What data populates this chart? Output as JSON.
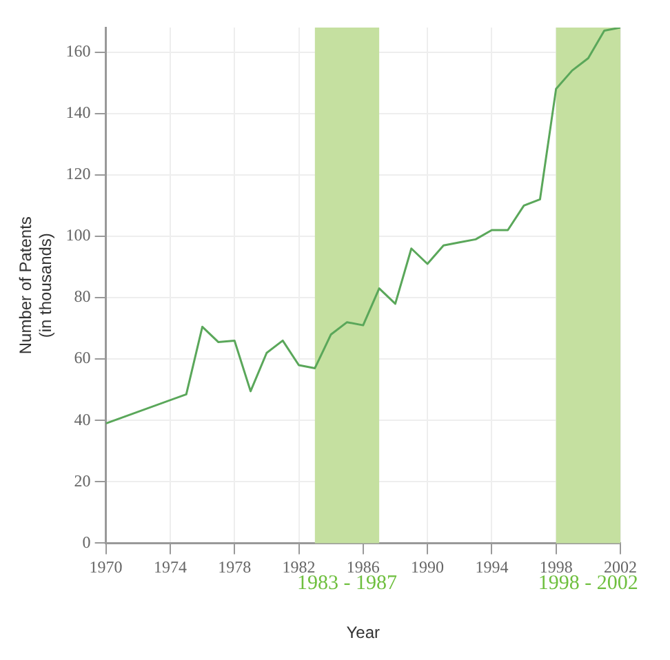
{
  "chart_data": {
    "type": "line",
    "xlabel": "Year",
    "ylabel": "Number of Patents\n(in thousands)",
    "x": [
      1970,
      1975,
      1976,
      1977,
      1978,
      1979,
      1980,
      1981,
      1982,
      1983,
      1984,
      1985,
      1986,
      1987,
      1988,
      1989,
      1990,
      1991,
      1992,
      1993,
      1994,
      1995,
      1996,
      1997,
      1998,
      1999,
      2000,
      2001,
      2002
    ],
    "series": [
      {
        "color": "#5aa75a",
        "values": [
          39,
          48.5,
          70.5,
          65.5,
          66,
          49.5,
          62,
          66,
          58,
          57,
          68,
          72,
          71,
          83,
          78,
          96,
          91,
          97,
          98,
          99,
          102,
          102,
          110,
          112,
          148,
          154,
          158,
          167,
          168
        ]
      }
    ],
    "xlim": [
      1970,
      2002
    ],
    "xticks": [
      1970,
      1974,
      1978,
      1982,
      1986,
      1990,
      1994,
      1998,
      2002
    ],
    "ylim": [
      0,
      168
    ],
    "yticks": [
      0,
      20,
      40,
      60,
      80,
      100,
      120,
      140,
      160
    ],
    "grid": true,
    "legend": false,
    "marker": "none",
    "line_style": "solid",
    "bands": [
      {
        "axis": "x",
        "from": 1983,
        "to": 1987,
        "label": "1983 - 1987",
        "color": "#c5e0a0"
      },
      {
        "axis": "x",
        "from": 1998,
        "to": 2002,
        "label": "1998 - 2002",
        "color": "#c5e0a0"
      }
    ]
  }
}
